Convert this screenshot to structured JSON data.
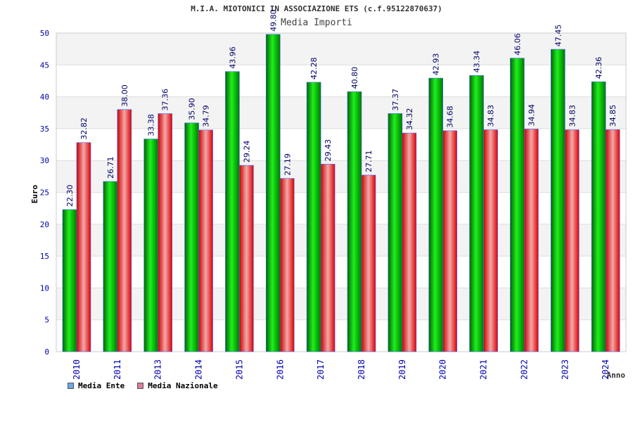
{
  "chart_data": {
    "type": "bar",
    "title": "M.I.A. MIOTONICI IN ASSOCIAZIONE ETS (c.f.95122870637)",
    "subtitle": "Media Importi",
    "xlabel": "Anno",
    "ylabel": "Euro",
    "ylim": [
      0,
      50
    ],
    "yticks": [
      0,
      5,
      10,
      15,
      20,
      25,
      30,
      35,
      40,
      45,
      50
    ],
    "categories": [
      "2010",
      "2011",
      "2013",
      "2014",
      "2015",
      "2016",
      "2017",
      "2018",
      "2019",
      "2020",
      "2021",
      "2022",
      "2023",
      "2024"
    ],
    "series": [
      {
        "name": "Media Ente",
        "legend_color": "#6aa8e8",
        "bar_color": "#00cc00",
        "values": [
          22.3,
          26.71,
          33.38,
          35.9,
          43.96,
          49.8,
          42.28,
          40.8,
          37.37,
          42.93,
          43.34,
          46.06,
          47.45,
          42.36
        ],
        "labels": [
          "22.30",
          "26.71",
          "33.38",
          "35.90",
          "43.96",
          "49.80",
          "42.28",
          "40.80",
          "37.37",
          "42.93",
          "43.34",
          "46.06",
          "47.45",
          "42.36"
        ]
      },
      {
        "name": "Media Nazionale",
        "legend_color": "#e07aa0",
        "bar_color": "#ee1111",
        "values": [
          32.82,
          38.0,
          37.36,
          34.79,
          29.24,
          27.19,
          29.43,
          27.71,
          34.32,
          34.68,
          34.83,
          34.94,
          34.83,
          34.85
        ],
        "labels": [
          "32.82",
          "38.00",
          "37.36",
          "34.79",
          "29.24",
          "27.19",
          "29.43",
          "27.71",
          "34.32",
          "34.68",
          "34.83",
          "34.94",
          "34.83",
          "34.85"
        ]
      }
    ]
  }
}
